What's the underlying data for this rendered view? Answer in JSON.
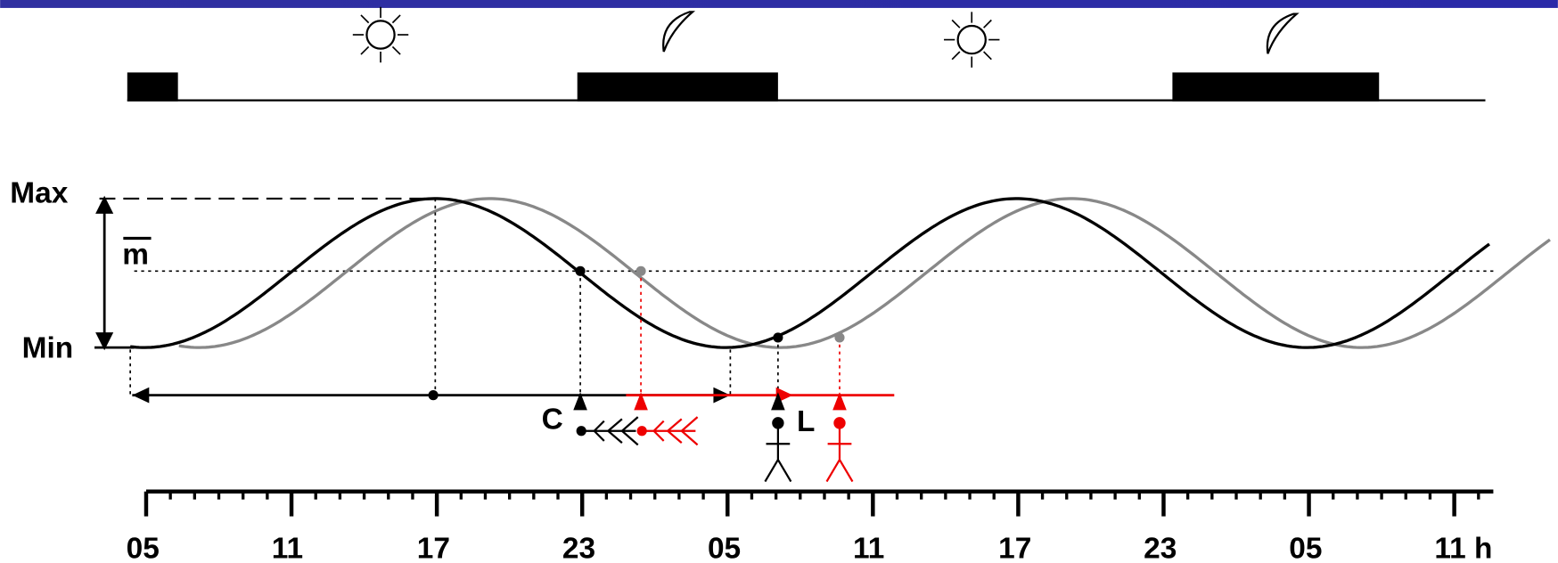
{
  "labels": {
    "max": "Max",
    "mean": "m",
    "min": "Min",
    "c": "C",
    "l": "L"
  },
  "x_axis": {
    "ticks": [
      "05",
      "11",
      "17",
      "23",
      "05",
      "11",
      "17",
      "23",
      "05",
      "11 h"
    ]
  }
}
